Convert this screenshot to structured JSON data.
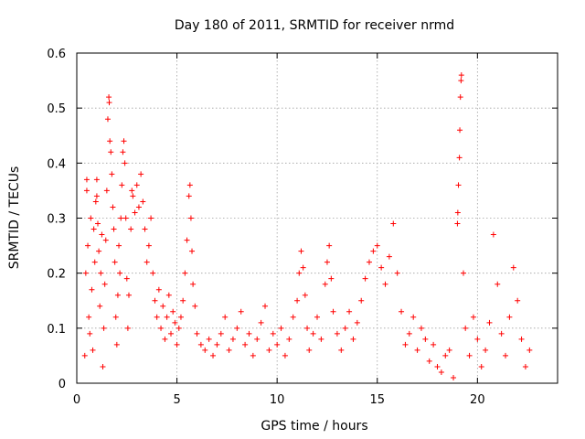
{
  "chart_data": {
    "type": "scatter",
    "title": "Day 180 of 2011, SRMTID for receiver nrmd",
    "xlabel": "GPS time / hours",
    "ylabel": "SRMTID / TECUs",
    "xlim": [
      0,
      24
    ],
    "ylim": [
      0,
      0.6
    ],
    "xticks": [
      0,
      5,
      10,
      15,
      20
    ],
    "yticks": [
      0,
      0.1,
      0.2,
      0.3,
      0.4,
      0.5,
      0.6
    ],
    "xtick_labels": [
      "0",
      "5",
      "10",
      "15",
      "20"
    ],
    "ytick_labels": [
      "0",
      "0.1",
      "0.2",
      "0.3",
      "0.4",
      "0.5",
      "0.6"
    ],
    "grid": true,
    "marker": "+",
    "color": "#ff0000",
    "series": [
      {
        "name": "SRMTID",
        "points": [
          [
            0.4,
            0.05
          ],
          [
            0.45,
            0.2
          ],
          [
            0.5,
            0.37
          ],
          [
            0.5,
            0.35
          ],
          [
            0.55,
            0.25
          ],
          [
            0.6,
            0.12
          ],
          [
            0.65,
            0.09
          ],
          [
            0.7,
            0.3
          ],
          [
            0.75,
            0.17
          ],
          [
            0.8,
            0.06
          ],
          [
            0.85,
            0.28
          ],
          [
            0.9,
            0.22
          ],
          [
            0.95,
            0.33
          ],
          [
            1.0,
            0.37
          ],
          [
            1.0,
            0.34
          ],
          [
            1.05,
            0.29
          ],
          [
            1.1,
            0.24
          ],
          [
            1.15,
            0.14
          ],
          [
            1.2,
            0.2
          ],
          [
            1.25,
            0.27
          ],
          [
            1.3,
            0.03
          ],
          [
            1.35,
            0.1
          ],
          [
            1.4,
            0.18
          ],
          [
            1.45,
            0.26
          ],
          [
            1.5,
            0.35
          ],
          [
            1.55,
            0.48
          ],
          [
            1.6,
            0.52
          ],
          [
            1.62,
            0.51
          ],
          [
            1.65,
            0.44
          ],
          [
            1.7,
            0.42
          ],
          [
            1.75,
            0.38
          ],
          [
            1.8,
            0.32
          ],
          [
            1.85,
            0.28
          ],
          [
            1.9,
            0.22
          ],
          [
            1.95,
            0.12
          ],
          [
            2.0,
            0.07
          ],
          [
            2.05,
            0.16
          ],
          [
            2.1,
            0.25
          ],
          [
            2.15,
            0.2
          ],
          [
            2.2,
            0.3
          ],
          [
            2.25,
            0.36
          ],
          [
            2.3,
            0.42
          ],
          [
            2.35,
            0.44
          ],
          [
            2.4,
            0.4
          ],
          [
            2.45,
            0.3
          ],
          [
            2.5,
            0.19
          ],
          [
            2.55,
            0.1
          ],
          [
            2.6,
            0.16
          ],
          [
            2.7,
            0.28
          ],
          [
            2.75,
            0.35
          ],
          [
            2.8,
            0.34
          ],
          [
            2.9,
            0.31
          ],
          [
            3.0,
            0.36
          ],
          [
            3.1,
            0.32
          ],
          [
            3.2,
            0.38
          ],
          [
            3.3,
            0.33
          ],
          [
            3.4,
            0.28
          ],
          [
            3.5,
            0.22
          ],
          [
            3.6,
            0.25
          ],
          [
            3.7,
            0.3
          ],
          [
            3.8,
            0.2
          ],
          [
            3.9,
            0.15
          ],
          [
            4.0,
            0.12
          ],
          [
            4.1,
            0.17
          ],
          [
            4.2,
            0.1
          ],
          [
            4.3,
            0.14
          ],
          [
            4.4,
            0.08
          ],
          [
            4.5,
            0.12
          ],
          [
            4.6,
            0.16
          ],
          [
            4.7,
            0.09
          ],
          [
            4.8,
            0.13
          ],
          [
            4.9,
            0.11
          ],
          [
            5.0,
            0.07
          ],
          [
            5.1,
            0.1
          ],
          [
            5.2,
            0.12
          ],
          [
            5.3,
            0.15
          ],
          [
            5.4,
            0.2
          ],
          [
            5.5,
            0.26
          ],
          [
            5.6,
            0.34
          ],
          [
            5.65,
            0.36
          ],
          [
            5.7,
            0.3
          ],
          [
            5.75,
            0.24
          ],
          [
            5.8,
            0.18
          ],
          [
            5.9,
            0.14
          ],
          [
            6.0,
            0.09
          ],
          [
            6.2,
            0.07
          ],
          [
            6.4,
            0.06
          ],
          [
            6.6,
            0.08
          ],
          [
            6.8,
            0.05
          ],
          [
            7.0,
            0.07
          ],
          [
            7.2,
            0.09
          ],
          [
            7.4,
            0.12
          ],
          [
            7.6,
            0.06
          ],
          [
            7.8,
            0.08
          ],
          [
            8.0,
            0.1
          ],
          [
            8.2,
            0.13
          ],
          [
            8.4,
            0.07
          ],
          [
            8.6,
            0.09
          ],
          [
            8.8,
            0.05
          ],
          [
            9.0,
            0.08
          ],
          [
            9.2,
            0.11
          ],
          [
            9.4,
            0.14
          ],
          [
            9.6,
            0.06
          ],
          [
            9.8,
            0.09
          ],
          [
            10.0,
            0.07
          ],
          [
            10.2,
            0.1
          ],
          [
            10.4,
            0.05
          ],
          [
            10.6,
            0.08
          ],
          [
            10.8,
            0.12
          ],
          [
            11.0,
            0.15
          ],
          [
            11.1,
            0.2
          ],
          [
            11.2,
            0.24
          ],
          [
            11.3,
            0.21
          ],
          [
            11.4,
            0.16
          ],
          [
            11.5,
            0.1
          ],
          [
            11.6,
            0.06
          ],
          [
            11.8,
            0.09
          ],
          [
            12.0,
            0.12
          ],
          [
            12.2,
            0.08
          ],
          [
            12.4,
            0.18
          ],
          [
            12.5,
            0.22
          ],
          [
            12.6,
            0.25
          ],
          [
            12.7,
            0.19
          ],
          [
            12.8,
            0.13
          ],
          [
            13.0,
            0.09
          ],
          [
            13.2,
            0.06
          ],
          [
            13.4,
            0.1
          ],
          [
            13.6,
            0.13
          ],
          [
            13.8,
            0.08
          ],
          [
            14.0,
            0.11
          ],
          [
            14.2,
            0.15
          ],
          [
            14.4,
            0.19
          ],
          [
            14.6,
            0.22
          ],
          [
            14.8,
            0.24
          ],
          [
            15.0,
            0.25
          ],
          [
            15.2,
            0.21
          ],
          [
            15.4,
            0.18
          ],
          [
            15.6,
            0.23
          ],
          [
            15.8,
            0.29
          ],
          [
            16.0,
            0.2
          ],
          [
            16.2,
            0.13
          ],
          [
            16.4,
            0.07
          ],
          [
            16.6,
            0.09
          ],
          [
            16.8,
            0.12
          ],
          [
            17.0,
            0.06
          ],
          [
            17.2,
            0.1
          ],
          [
            17.4,
            0.08
          ],
          [
            17.6,
            0.04
          ],
          [
            17.8,
            0.07
          ],
          [
            18.0,
            0.03
          ],
          [
            18.2,
            0.02
          ],
          [
            18.4,
            0.05
          ],
          [
            18.6,
            0.06
          ],
          [
            18.8,
            0.01
          ],
          [
            19.0,
            0.29
          ],
          [
            19.02,
            0.31
          ],
          [
            19.05,
            0.36
          ],
          [
            19.1,
            0.41
          ],
          [
            19.12,
            0.46
          ],
          [
            19.15,
            0.52
          ],
          [
            19.18,
            0.55
          ],
          [
            19.2,
            0.56
          ],
          [
            19.3,
            0.2
          ],
          [
            19.4,
            0.1
          ],
          [
            19.6,
            0.05
          ],
          [
            19.8,
            0.12
          ],
          [
            20.0,
            0.08
          ],
          [
            20.2,
            0.03
          ],
          [
            20.4,
            0.06
          ],
          [
            20.6,
            0.11
          ],
          [
            20.8,
            0.27
          ],
          [
            21.0,
            0.18
          ],
          [
            21.2,
            0.09
          ],
          [
            21.4,
            0.05
          ],
          [
            21.6,
            0.12
          ],
          [
            21.8,
            0.21
          ],
          [
            22.0,
            0.15
          ],
          [
            22.2,
            0.08
          ],
          [
            22.4,
            0.03
          ],
          [
            22.6,
            0.06
          ]
        ]
      }
    ]
  }
}
